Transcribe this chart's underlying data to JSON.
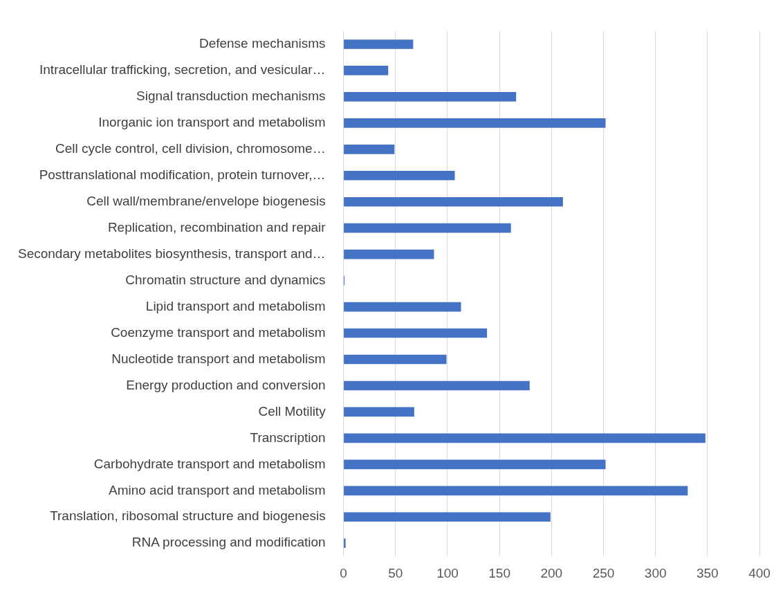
{
  "chart_data": {
    "type": "bar",
    "orientation": "horizontal",
    "categories": [
      "Defense mechanisms",
      "Intracellular trafficking, secretion, and vesicular…",
      "Signal transduction mechanisms",
      "Inorganic ion transport and metabolism",
      "Cell cycle control, cell division, chromosome…",
      "Posttranslational modification, protein turnover,…",
      "Cell wall/membrane/envelope biogenesis",
      "Replication, recombination and repair",
      "Secondary metabolites biosynthesis, transport and…",
      "Chromatin structure and dynamics",
      "Lipid transport and metabolism",
      "Coenzyme transport and metabolism",
      "Nucleotide transport and metabolism",
      "Energy production and conversion",
      "Cell Motility",
      "Transcription",
      "Carbohydrate transport and metabolism",
      "Amino acid transport and metabolism",
      "Translation, ribosomal structure and biogenesis",
      "RNA processing and modification"
    ],
    "values": [
      67,
      43,
      166,
      252,
      49,
      107,
      211,
      161,
      87,
      1,
      113,
      138,
      99,
      179,
      68,
      348,
      252,
      331,
      199,
      2
    ],
    "color": "#4472c4",
    "xlim": [
      0,
      400
    ],
    "xticks": [
      0,
      50,
      100,
      150,
      200,
      250,
      300,
      350,
      400
    ],
    "grid": "x",
    "legend": false
  }
}
